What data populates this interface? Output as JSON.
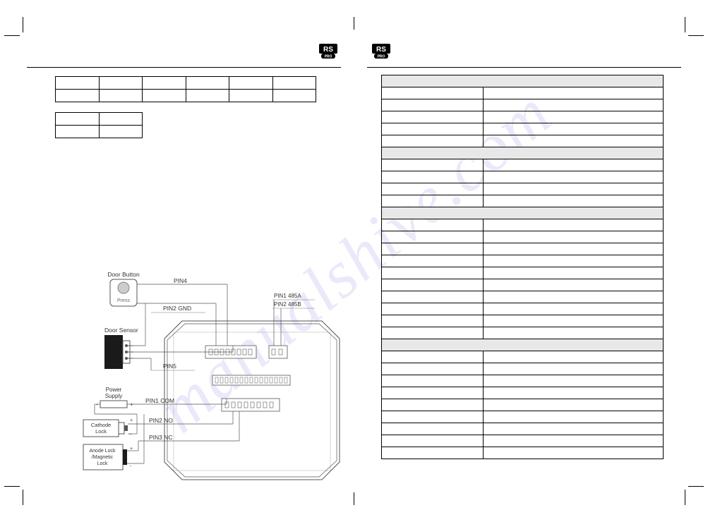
{
  "logo": {
    "top_text": "RS",
    "bottom_text": "PRO"
  },
  "left_page": {
    "table1": {
      "cols": 6,
      "rows": 2
    },
    "table2": {
      "cols": 2,
      "rows": 2
    },
    "diagram": {
      "labels": {
        "door_button": "Door Button",
        "press": "Press",
        "door_sensor": "Door Sensor",
        "power_supply_label1": "Power",
        "power_supply_label2": "Supply",
        "cathode_label1": "Cathode",
        "cathode_label2": "Lock",
        "anode_label1": "Anode Lock",
        "anode_label2": "/Magnetic",
        "anode_label3": "Lock",
        "pin4": "PIN4",
        "pin2_gnd": "PIN2  GND",
        "pin5": "PIN5",
        "pin1_com": "PIN1  COM",
        "pin2_no": "PIN2  NO",
        "pin3_nc": "PIN3  NC",
        "pin1_485a": "PIN1 485A",
        "pin2_485b": "PIN2 485B"
      },
      "colors": {
        "line": "#555555",
        "box_fill": "#ffffff",
        "sensor_fill": "#1a1a1a",
        "button_fill": "#cccccc"
      }
    }
  },
  "right_page": {
    "spec_rows": [
      {
        "section": true
      },
      {
        "section": false
      },
      {
        "section": false
      },
      {
        "section": false
      },
      {
        "section": false
      },
      {
        "section": false
      },
      {
        "section": true
      },
      {
        "section": false
      },
      {
        "section": false
      },
      {
        "section": false
      },
      {
        "section": false
      },
      {
        "section": true
      },
      {
        "section": false
      },
      {
        "section": false
      },
      {
        "section": false
      },
      {
        "section": false
      },
      {
        "section": false
      },
      {
        "section": false
      },
      {
        "section": false
      },
      {
        "section": false
      },
      {
        "section": false
      },
      {
        "section": false
      },
      {
        "section": true
      },
      {
        "section": false
      },
      {
        "section": false
      },
      {
        "section": false
      },
      {
        "section": false
      },
      {
        "section": false
      },
      {
        "section": false
      },
      {
        "section": false
      },
      {
        "section": false
      },
      {
        "section": false
      }
    ]
  },
  "watermark": "manualshive.com"
}
